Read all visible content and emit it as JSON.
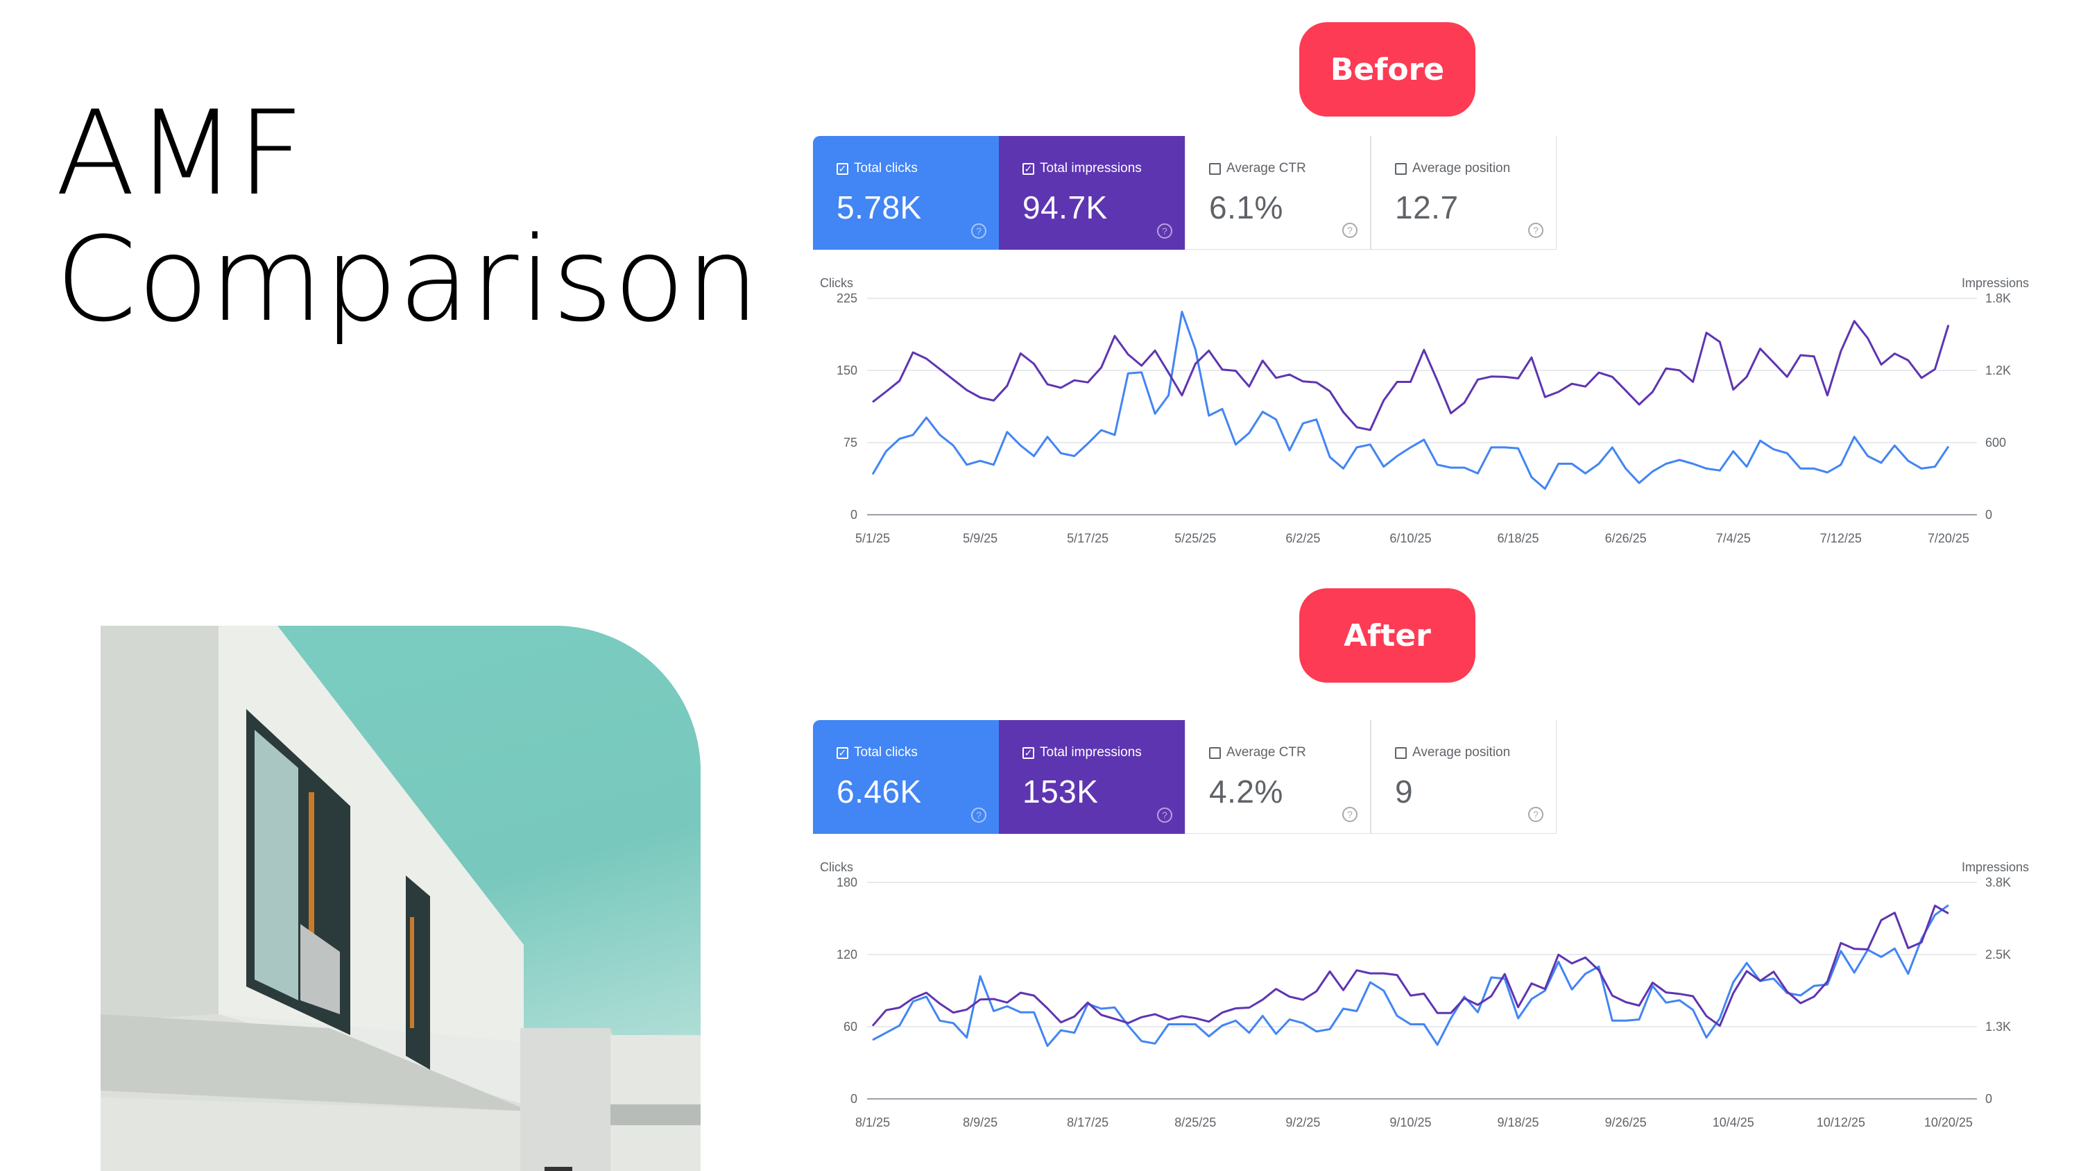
{
  "title": {
    "line1": "AMF",
    "line2": "Comparison"
  },
  "colors": {
    "pill": "#fd3b54",
    "clicks": "#4285f4",
    "impressions": "#5e35b1",
    "grid": "#e8eaed",
    "axis": "#9aa0a6"
  },
  "before": {
    "pill_label": "Before",
    "cards": [
      {
        "label": "Total clicks",
        "value": "5.78K",
        "checked": true
      },
      {
        "label": "Total impressions",
        "value": "94.7K",
        "checked": true
      },
      {
        "label": "Average CTR",
        "value": "6.1%",
        "checked": false
      },
      {
        "label": "Average position",
        "value": "12.7",
        "checked": false
      }
    ]
  },
  "after": {
    "pill_label": "After",
    "cards": [
      {
        "label": "Total clicks",
        "value": "6.46K",
        "checked": true
      },
      {
        "label": "Total impressions",
        "value": "153K",
        "checked": true
      },
      {
        "label": "Average CTR",
        "value": "4.2%",
        "checked": false
      },
      {
        "label": "Average position",
        "value": "9",
        "checked": false
      }
    ]
  },
  "chart_data": [
    {
      "type": "line",
      "title": "Before",
      "xlabel": "",
      "ylabel": "Clicks",
      "y2label": "Impressions",
      "ylim": [
        0,
        225
      ],
      "y2lim": [
        0,
        1800
      ],
      "yticks": [
        "0",
        "75",
        "150",
        "225"
      ],
      "y2ticks": [
        "0",
        "600",
        "1.2K",
        "1.8K"
      ],
      "xticks": [
        "5/1/25",
        "5/9/25",
        "5/17/25",
        "5/25/25",
        "6/2/25",
        "6/10/25",
        "6/18/25",
        "6/26/25",
        "7/4/25",
        "7/12/25",
        "7/20/25"
      ],
      "x_start": "5/1/25",
      "x_end": "7/20/25",
      "grid": true,
      "series": [
        {
          "name": "Clicks",
          "axis": "left",
          "color": "#4285f4",
          "values": [
            42,
            66,
            79,
            83,
            101,
            83,
            72,
            52,
            56,
            52,
            86,
            72,
            61,
            81,
            64,
            61,
            74,
            88,
            83,
            147,
            148,
            105,
            124,
            211,
            172,
            103,
            110,
            73,
            85,
            107,
            99,
            67,
            95,
            99,
            60,
            48,
            70,
            73,
            50,
            61,
            70,
            78,
            52,
            49,
            49,
            43,
            70,
            70,
            69,
            39,
            27,
            53,
            53,
            43,
            53,
            70,
            48,
            33,
            45,
            53,
            57,
            53,
            48,
            46,
            66,
            50,
            77,
            68,
            64,
            48,
            48,
            44,
            52,
            81,
            61,
            54,
            72,
            56,
            48,
            50,
            71
          ]
        },
        {
          "name": "Impressions",
          "axis": "right",
          "color": "#5e35b1",
          "values": [
            937,
            1024,
            1114,
            1350,
            1298,
            1211,
            1124,
            1037,
            975,
            950,
            1072,
            1342,
            1255,
            1085,
            1056,
            1118,
            1101,
            1224,
            1487,
            1333,
            1240,
            1365,
            1182,
            993,
            1255,
            1365,
            1207,
            1197,
            1066,
            1282,
            1138,
            1166,
            1109,
            1101,
            1027,
            854,
            728,
            705,
            950,
            1105,
            1105,
            1371,
            1114,
            844,
            931,
            1124,
            1149,
            1147,
            1134,
            1308,
            979,
            1022,
            1089,
            1066,
            1182,
            1147,
            1033,
            917,
            1022,
            1217,
            1201,
            1105,
            1514,
            1437,
            1041,
            1147,
            1381,
            1265,
            1147,
            1327,
            1317,
            993,
            1360,
            1611,
            1468,
            1249,
            1340,
            1284,
            1138,
            1211,
            1578
          ]
        }
      ]
    },
    {
      "type": "line",
      "title": "After",
      "xlabel": "",
      "ylabel": "Clicks",
      "y2label": "Impressions",
      "ylim": [
        0,
        180
      ],
      "y2lim": [
        0,
        3800
      ],
      "yticks": [
        "0",
        "60",
        "120",
        "180"
      ],
      "y2ticks": [
        "0",
        "1.3K",
        "2.5K",
        "3.8K"
      ],
      "xticks": [
        "8/1/25",
        "8/9/25",
        "8/17/25",
        "8/25/25",
        "9/2/25",
        "9/10/25",
        "9/18/25",
        "9/26/25",
        "10/4/25",
        "10/12/25",
        "10/20/25"
      ],
      "x_start": "8/1/25",
      "x_end": "10/20/25",
      "grid": true,
      "series": [
        {
          "name": "Clicks",
          "axis": "left",
          "color": "#4285f4",
          "values": [
            49,
            55,
            61,
            81,
            85,
            65,
            63,
            51,
            102,
            73,
            77,
            72,
            72,
            44,
            57,
            55,
            79,
            75,
            76,
            61,
            48,
            46,
            62,
            62,
            62,
            52,
            61,
            65,
            55,
            69,
            54,
            66,
            63,
            56,
            58,
            75,
            73,
            97,
            90,
            69,
            62,
            62,
            45,
            67,
            85,
            72,
            101,
            100,
            67,
            83,
            90,
            114,
            91,
            104,
            110,
            65,
            65,
            66,
            94,
            80,
            82,
            74,
            51,
            67,
            97,
            113,
            98,
            100,
            88,
            86,
            94,
            95,
            123,
            105,
            124,
            118,
            125,
            104,
            133,
            153,
            161
          ]
        },
        {
          "name": "Impressions",
          "axis": "right",
          "color": "#5e35b1",
          "values": [
            1282,
            1556,
            1601,
            1765,
            1863,
            1671,
            1515,
            1568,
            1744,
            1753,
            1691,
            1863,
            1814,
            1589,
            1343,
            1445,
            1691,
            1474,
            1404,
            1331,
            1433,
            1486,
            1392,
            1453,
            1417,
            1355,
            1515,
            1589,
            1601,
            1740,
            1929,
            1794,
            1740,
            1888,
            2236,
            1908,
            2257,
            2203,
            2203,
            2174,
            1814,
            1847,
            1507,
            1507,
            1765,
            1650,
            1802,
            2191,
            1610,
            2027,
            1929,
            2531,
            2379,
            2482,
            2257,
            1814,
            1699,
            1638,
            2040,
            1868,
            1843,
            1802,
            1453,
            1282,
            1855,
            2244,
            2072,
            2232,
            1884,
            1679,
            1794,
            2060,
            2736,
            2633,
            2625,
            3137,
            3268,
            2646,
            2748,
            3391,
            3256
          ]
        }
      ]
    }
  ]
}
